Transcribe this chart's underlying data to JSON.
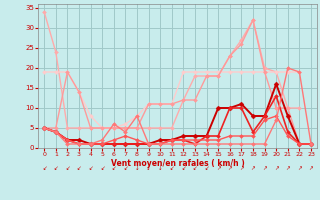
{
  "xlabel": "Vent moyen/en rafales ( km/h )",
  "xlim": [
    -0.5,
    23.5
  ],
  "ylim": [
    0,
    36
  ],
  "yticks": [
    0,
    5,
    10,
    15,
    20,
    25,
    30,
    35
  ],
  "xticks": [
    0,
    1,
    2,
    3,
    4,
    5,
    6,
    7,
    8,
    9,
    10,
    11,
    12,
    13,
    14,
    15,
    16,
    17,
    18,
    19,
    20,
    21,
    22,
    23
  ],
  "bg_color": "#c8ecec",
  "grid_color": "#a0c8c8",
  "series": [
    {
      "comment": "light pink - starts high ~34, goes down to ~5, then up to ~32",
      "x": [
        0,
        1,
        2,
        3,
        4,
        5,
        6,
        7,
        8,
        9,
        10,
        11,
        12,
        13,
        14,
        15,
        16,
        17,
        18,
        19,
        20,
        21,
        22
      ],
      "y": [
        34,
        24,
        5,
        5,
        5,
        5,
        5,
        5,
        5,
        5,
        5,
        5,
        12,
        18,
        18,
        18,
        23,
        27,
        32,
        20,
        19,
        10,
        10
      ],
      "color": "#ffaaaa",
      "lw": 1.0,
      "marker": "D",
      "ms": 2.0
    },
    {
      "comment": "light pink flat ~19 across most, with peak at x=20 ~32",
      "x": [
        0,
        1,
        2,
        3,
        4,
        5,
        6,
        7,
        8,
        9,
        10,
        11,
        12,
        13,
        14,
        15,
        16,
        17,
        18,
        19,
        20,
        21,
        22
      ],
      "y": [
        19,
        19,
        19,
        14,
        8,
        5,
        5,
        6,
        8,
        11,
        11,
        11,
        19,
        19,
        19,
        19,
        19,
        19,
        19,
        19,
        19,
        19,
        19
      ],
      "color": "#ffcccc",
      "lw": 1.0,
      "marker": "D",
      "ms": 2.0
    },
    {
      "comment": "medium pink - goes from ~19 down then up sharply to 32 at x=20",
      "x": [
        0,
        1,
        2,
        3,
        4,
        5,
        6,
        7,
        8,
        9,
        10,
        11,
        12,
        13,
        14,
        15,
        16,
        17,
        18,
        19,
        20,
        21,
        22,
        23
      ],
      "y": [
        5,
        5,
        19,
        14,
        5,
        5,
        5,
        5,
        5,
        11,
        11,
        11,
        12,
        12,
        18,
        18,
        23,
        26,
        32,
        19,
        10,
        10,
        1,
        1
      ],
      "color": "#ff9999",
      "lw": 1.0,
      "marker": "D",
      "ms": 2.0
    },
    {
      "comment": "dark red - low values climbing from ~5 to ~16 at x=20",
      "x": [
        0,
        1,
        2,
        3,
        4,
        5,
        6,
        7,
        8,
        9,
        10,
        11,
        12,
        13,
        14,
        15,
        16,
        17,
        18,
        19,
        20,
        21,
        22,
        23
      ],
      "y": [
        5,
        4,
        2,
        2,
        1,
        1,
        1,
        1,
        1,
        1,
        2,
        2,
        3,
        3,
        3,
        10,
        10,
        11,
        8,
        8,
        16,
        8,
        1,
        1
      ],
      "color": "#cc0000",
      "lw": 1.4,
      "marker": "D",
      "ms": 2.5
    },
    {
      "comment": "red - similar low, peak at x=16-17 ~10-11, then down",
      "x": [
        0,
        1,
        2,
        3,
        4,
        5,
        6,
        7,
        8,
        9,
        10,
        11,
        12,
        13,
        14,
        15,
        16,
        17,
        18,
        19,
        20,
        21,
        22,
        23
      ],
      "y": [
        5,
        4,
        2,
        1,
        1,
        1,
        1,
        1,
        1,
        1,
        1,
        2,
        2,
        1,
        3,
        3,
        10,
        10,
        4,
        8,
        13,
        4,
        1,
        1
      ],
      "color": "#ee2222",
      "lw": 1.2,
      "marker": "D",
      "ms": 2.0
    },
    {
      "comment": "medium red - low values, small bumps",
      "x": [
        0,
        1,
        2,
        3,
        4,
        5,
        6,
        7,
        8,
        9,
        10,
        11,
        12,
        13,
        14,
        15,
        16,
        17,
        18,
        19,
        20,
        21,
        22,
        23
      ],
      "y": [
        5,
        4,
        2,
        1,
        1,
        1,
        2,
        3,
        2,
        1,
        1,
        2,
        2,
        2,
        2,
        2,
        3,
        3,
        3,
        7,
        8,
        3,
        1,
        1
      ],
      "color": "#ff5555",
      "lw": 1.0,
      "marker": "D",
      "ms": 2.0
    },
    {
      "comment": "lighter red - bump at x=6 ~6, x=8 ~8, then flat low",
      "x": [
        0,
        1,
        2,
        3,
        4,
        5,
        6,
        7,
        8,
        9,
        10,
        11,
        12,
        13,
        14,
        15,
        16,
        17,
        18,
        19,
        20,
        21,
        22,
        23
      ],
      "y": [
        5,
        4,
        1,
        1,
        1,
        2,
        6,
        4,
        8,
        1,
        1,
        1,
        1,
        1,
        1,
        1,
        1,
        1,
        1,
        1,
        7,
        20,
        19,
        1
      ],
      "color": "#ff7777",
      "lw": 1.0,
      "marker": "D",
      "ms": 2.0
    }
  ],
  "wind_arrows": {
    "x": [
      0,
      1,
      2,
      3,
      4,
      5,
      6,
      7,
      8,
      9,
      10,
      11,
      12,
      13,
      14,
      15,
      16,
      17,
      18,
      19,
      20,
      21,
      22,
      23
    ],
    "symbols": [
      "↙",
      "↙",
      "↙",
      "↙",
      "↙",
      "↙",
      "↙",
      "↙",
      "↓",
      "↓",
      "↓",
      "↙",
      "↙",
      "↙",
      "↙",
      "↗",
      "↗",
      "↗",
      "↗",
      "↗",
      "↗",
      "↗",
      "↗",
      "↗"
    ]
  }
}
